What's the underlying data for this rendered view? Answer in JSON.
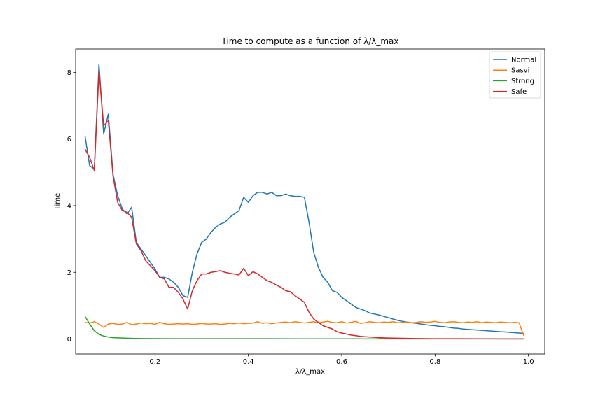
{
  "chart_data": {
    "type": "line",
    "title": "Time to compute as a function of λ/λ_max",
    "xlabel": "λ/λ_max",
    "ylabel": "Time",
    "xlim": [
      0.03,
      1.035
    ],
    "ylim": [
      -0.45,
      8.7
    ],
    "xticks": [
      0.2,
      0.4,
      0.6,
      0.8,
      1.0
    ],
    "xtick_labels": [
      "0.2",
      "0.4",
      "0.6",
      "0.8",
      "1.0"
    ],
    "yticks": [
      0,
      2,
      4,
      6,
      8
    ],
    "ytick_labels": [
      "0",
      "2",
      "4",
      "6",
      "8"
    ],
    "grid": false,
    "legend_position": "top-right",
    "series": [
      {
        "name": "Normal",
        "color": "#1f77b4",
        "points": [
          [
            0.05,
            6.1
          ],
          [
            0.06,
            5.2
          ],
          [
            0.07,
            5.1
          ],
          [
            0.08,
            8.25
          ],
          [
            0.09,
            6.15
          ],
          [
            0.1,
            6.75
          ],
          [
            0.11,
            4.95
          ],
          [
            0.12,
            4.3
          ],
          [
            0.13,
            3.9
          ],
          [
            0.14,
            3.75
          ],
          [
            0.15,
            3.95
          ],
          [
            0.16,
            2.9
          ],
          [
            0.17,
            2.7
          ],
          [
            0.18,
            2.5
          ],
          [
            0.19,
            2.3
          ],
          [
            0.2,
            2.1
          ],
          [
            0.21,
            1.85
          ],
          [
            0.22,
            1.85
          ],
          [
            0.23,
            1.8
          ],
          [
            0.24,
            1.7
          ],
          [
            0.25,
            1.55
          ],
          [
            0.26,
            1.3
          ],
          [
            0.27,
            1.25
          ],
          [
            0.28,
            2.0
          ],
          [
            0.29,
            2.55
          ],
          [
            0.3,
            2.9
          ],
          [
            0.31,
            3.0
          ],
          [
            0.32,
            3.2
          ],
          [
            0.33,
            3.35
          ],
          [
            0.34,
            3.45
          ],
          [
            0.35,
            3.5
          ],
          [
            0.36,
            3.65
          ],
          [
            0.37,
            3.75
          ],
          [
            0.38,
            3.85
          ],
          [
            0.39,
            4.25
          ],
          [
            0.4,
            4.1
          ],
          [
            0.41,
            4.3
          ],
          [
            0.42,
            4.4
          ],
          [
            0.43,
            4.4
          ],
          [
            0.44,
            4.35
          ],
          [
            0.45,
            4.4
          ],
          [
            0.46,
            4.3
          ],
          [
            0.47,
            4.3
          ],
          [
            0.48,
            4.35
          ],
          [
            0.49,
            4.3
          ],
          [
            0.5,
            4.28
          ],
          [
            0.51,
            4.28
          ],
          [
            0.52,
            4.25
          ],
          [
            0.53,
            3.5
          ],
          [
            0.54,
            2.6
          ],
          [
            0.55,
            2.15
          ],
          [
            0.56,
            1.85
          ],
          [
            0.57,
            1.7
          ],
          [
            0.58,
            1.45
          ],
          [
            0.59,
            1.4
          ],
          [
            0.6,
            1.25
          ],
          [
            0.61,
            1.15
          ],
          [
            0.62,
            1.05
          ],
          [
            0.63,
            0.95
          ],
          [
            0.64,
            0.9
          ],
          [
            0.65,
            0.85
          ],
          [
            0.66,
            0.78
          ],
          [
            0.67,
            0.75
          ],
          [
            0.68,
            0.72
          ],
          [
            0.69,
            0.68
          ],
          [
            0.7,
            0.64
          ],
          [
            0.71,
            0.6
          ],
          [
            0.72,
            0.56
          ],
          [
            0.73,
            0.53
          ],
          [
            0.74,
            0.51
          ],
          [
            0.75,
            0.49
          ],
          [
            0.76,
            0.47
          ],
          [
            0.77,
            0.45
          ],
          [
            0.78,
            0.43
          ],
          [
            0.79,
            0.41
          ],
          [
            0.8,
            0.4
          ],
          [
            0.81,
            0.38
          ],
          [
            0.82,
            0.37
          ],
          [
            0.83,
            0.35
          ],
          [
            0.84,
            0.33
          ],
          [
            0.85,
            0.32
          ],
          [
            0.86,
            0.3
          ],
          [
            0.87,
            0.29
          ],
          [
            0.88,
            0.28
          ],
          [
            0.89,
            0.27
          ],
          [
            0.9,
            0.26
          ],
          [
            0.91,
            0.25
          ],
          [
            0.92,
            0.24
          ],
          [
            0.93,
            0.23
          ],
          [
            0.94,
            0.22
          ],
          [
            0.95,
            0.21
          ],
          [
            0.96,
            0.2
          ],
          [
            0.97,
            0.19
          ],
          [
            0.98,
            0.18
          ],
          [
            0.99,
            0.17
          ]
        ]
      },
      {
        "name": "Sasvi",
        "color": "#ff7f0e",
        "points": [
          [
            0.05,
            0.5
          ],
          [
            0.06,
            0.48
          ],
          [
            0.07,
            0.52
          ],
          [
            0.08,
            0.45
          ],
          [
            0.09,
            0.35
          ],
          [
            0.1,
            0.45
          ],
          [
            0.11,
            0.47
          ],
          [
            0.12,
            0.44
          ],
          [
            0.13,
            0.45
          ],
          [
            0.14,
            0.5
          ],
          [
            0.15,
            0.43
          ],
          [
            0.16,
            0.45
          ],
          [
            0.17,
            0.48
          ],
          [
            0.18,
            0.46
          ],
          [
            0.19,
            0.47
          ],
          [
            0.2,
            0.44
          ],
          [
            0.21,
            0.5
          ],
          [
            0.22,
            0.46
          ],
          [
            0.23,
            0.44
          ],
          [
            0.24,
            0.45
          ],
          [
            0.25,
            0.46
          ],
          [
            0.26,
            0.45
          ],
          [
            0.27,
            0.46
          ],
          [
            0.28,
            0.44
          ],
          [
            0.29,
            0.45
          ],
          [
            0.3,
            0.47
          ],
          [
            0.31,
            0.45
          ],
          [
            0.32,
            0.45
          ],
          [
            0.33,
            0.46
          ],
          [
            0.34,
            0.44
          ],
          [
            0.35,
            0.45
          ],
          [
            0.36,
            0.47
          ],
          [
            0.37,
            0.46
          ],
          [
            0.38,
            0.48
          ],
          [
            0.39,
            0.46
          ],
          [
            0.4,
            0.47
          ],
          [
            0.41,
            0.48
          ],
          [
            0.42,
            0.52
          ],
          [
            0.43,
            0.47
          ],
          [
            0.44,
            0.49
          ],
          [
            0.45,
            0.46
          ],
          [
            0.46,
            0.48
          ],
          [
            0.47,
            0.5
          ],
          [
            0.48,
            0.51
          ],
          [
            0.49,
            0.49
          ],
          [
            0.5,
            0.52
          ],
          [
            0.51,
            0.5
          ],
          [
            0.52,
            0.48
          ],
          [
            0.53,
            0.5
          ],
          [
            0.54,
            0.52
          ],
          [
            0.55,
            0.49
          ],
          [
            0.56,
            0.51
          ],
          [
            0.57,
            0.53
          ],
          [
            0.58,
            0.5
          ],
          [
            0.59,
            0.49
          ],
          [
            0.6,
            0.52
          ],
          [
            0.61,
            0.48
          ],
          [
            0.62,
            0.5
          ],
          [
            0.63,
            0.53
          ],
          [
            0.64,
            0.47
          ],
          [
            0.65,
            0.49
          ],
          [
            0.66,
            0.52
          ],
          [
            0.67,
            0.5
          ],
          [
            0.68,
            0.49
          ],
          [
            0.69,
            0.51
          ],
          [
            0.7,
            0.5
          ],
          [
            0.71,
            0.52
          ],
          [
            0.72,
            0.49
          ],
          [
            0.73,
            0.5
          ],
          [
            0.74,
            0.51
          ],
          [
            0.75,
            0.49
          ],
          [
            0.76,
            0.5
          ],
          [
            0.77,
            0.52
          ],
          [
            0.78,
            0.5
          ],
          [
            0.79,
            0.51
          ],
          [
            0.8,
            0.53
          ],
          [
            0.81,
            0.5
          ],
          [
            0.82,
            0.49
          ],
          [
            0.83,
            0.51
          ],
          [
            0.84,
            0.52
          ],
          [
            0.85,
            0.5
          ],
          [
            0.86,
            0.49
          ],
          [
            0.87,
            0.51
          ],
          [
            0.88,
            0.5
          ],
          [
            0.89,
            0.52
          ],
          [
            0.9,
            0.49
          ],
          [
            0.91,
            0.51
          ],
          [
            0.92,
            0.5
          ],
          [
            0.93,
            0.49
          ],
          [
            0.94,
            0.51
          ],
          [
            0.95,
            0.5
          ],
          [
            0.96,
            0.49
          ],
          [
            0.97,
            0.5
          ],
          [
            0.98,
            0.49
          ],
          [
            0.99,
            0.1
          ]
        ]
      },
      {
        "name": "Strong",
        "color": "#2ca02c",
        "points": [
          [
            0.05,
            0.68
          ],
          [
            0.06,
            0.45
          ],
          [
            0.07,
            0.25
          ],
          [
            0.08,
            0.14
          ],
          [
            0.09,
            0.09
          ],
          [
            0.1,
            0.06
          ],
          [
            0.11,
            0.04
          ],
          [
            0.12,
            0.035
          ],
          [
            0.13,
            0.03
          ],
          [
            0.14,
            0.025
          ],
          [
            0.15,
            0.02
          ],
          [
            0.17,
            0.015
          ],
          [
            0.2,
            0.012
          ],
          [
            0.25,
            0.01
          ],
          [
            0.3,
            0.01
          ],
          [
            0.35,
            0.01
          ],
          [
            0.4,
            0.008
          ],
          [
            0.45,
            0.008
          ],
          [
            0.5,
            0.007
          ],
          [
            0.55,
            0.006
          ],
          [
            0.6,
            0.006
          ],
          [
            0.65,
            0.005
          ],
          [
            0.7,
            0.005
          ],
          [
            0.75,
            0.004
          ],
          [
            0.8,
            0.004
          ],
          [
            0.85,
            0.004
          ],
          [
            0.9,
            0.003
          ],
          [
            0.95,
            0.003
          ],
          [
            0.99,
            0.003
          ]
        ]
      },
      {
        "name": "Safe",
        "color": "#d62728",
        "points": [
          [
            0.05,
            5.7
          ],
          [
            0.06,
            5.45
          ],
          [
            0.07,
            5.05
          ],
          [
            0.08,
            8.05
          ],
          [
            0.09,
            6.4
          ],
          [
            0.1,
            6.55
          ],
          [
            0.11,
            4.9
          ],
          [
            0.12,
            4.1
          ],
          [
            0.13,
            3.85
          ],
          [
            0.14,
            3.8
          ],
          [
            0.15,
            3.65
          ],
          [
            0.16,
            2.85
          ],
          [
            0.17,
            2.65
          ],
          [
            0.18,
            2.35
          ],
          [
            0.19,
            2.2
          ],
          [
            0.2,
            2.05
          ],
          [
            0.21,
            1.85
          ],
          [
            0.22,
            1.8
          ],
          [
            0.23,
            1.55
          ],
          [
            0.24,
            1.55
          ],
          [
            0.25,
            1.4
          ],
          [
            0.26,
            1.2
          ],
          [
            0.27,
            0.9
          ],
          [
            0.28,
            1.45
          ],
          [
            0.29,
            1.75
          ],
          [
            0.3,
            1.95
          ],
          [
            0.31,
            1.95
          ],
          [
            0.32,
            2.0
          ],
          [
            0.33,
            2.02
          ],
          [
            0.34,
            2.05
          ],
          [
            0.35,
            2.0
          ],
          [
            0.36,
            1.97
          ],
          [
            0.37,
            1.95
          ],
          [
            0.38,
            1.92
          ],
          [
            0.39,
            2.12
          ],
          [
            0.4,
            1.9
          ],
          [
            0.41,
            2.02
          ],
          [
            0.42,
            1.95
          ],
          [
            0.43,
            1.85
          ],
          [
            0.44,
            1.75
          ],
          [
            0.45,
            1.7
          ],
          [
            0.46,
            1.62
          ],
          [
            0.47,
            1.55
          ],
          [
            0.48,
            1.45
          ],
          [
            0.49,
            1.42
          ],
          [
            0.5,
            1.3
          ],
          [
            0.51,
            1.2
          ],
          [
            0.52,
            1.1
          ],
          [
            0.53,
            0.8
          ],
          [
            0.54,
            0.6
          ],
          [
            0.55,
            0.5
          ],
          [
            0.56,
            0.4
          ],
          [
            0.57,
            0.35
          ],
          [
            0.58,
            0.3
          ],
          [
            0.59,
            0.22
          ],
          [
            0.6,
            0.18
          ],
          [
            0.61,
            0.15
          ],
          [
            0.62,
            0.12
          ],
          [
            0.63,
            0.1
          ],
          [
            0.64,
            0.08
          ],
          [
            0.65,
            0.07
          ],
          [
            0.66,
            0.06
          ],
          [
            0.67,
            0.05
          ],
          [
            0.68,
            0.04
          ],
          [
            0.69,
            0.035
          ],
          [
            0.7,
            0.03
          ],
          [
            0.72,
            0.025
          ],
          [
            0.74,
            0.02
          ],
          [
            0.76,
            0.015
          ],
          [
            0.78,
            0.012
          ],
          [
            0.8,
            0.01
          ],
          [
            0.85,
            0.008
          ],
          [
            0.9,
            0.006
          ],
          [
            0.95,
            0.005
          ],
          [
            0.99,
            0.005
          ]
        ]
      }
    ]
  }
}
